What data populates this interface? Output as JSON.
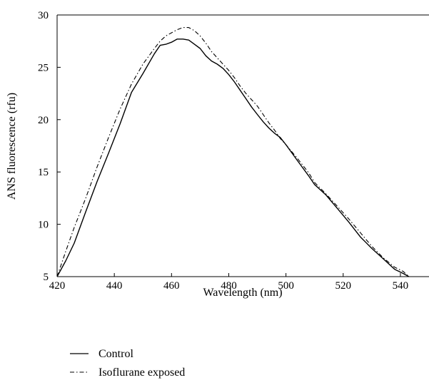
{
  "chart_data": {
    "type": "line",
    "xlabel": "Wavelength (nm)",
    "ylabel": "ANS fluorescence (rfu)",
    "xlim": [
      420,
      550
    ],
    "ylim": [
      5,
      30
    ],
    "x_ticks": [
      "420",
      "440",
      "460",
      "480",
      "500",
      "520",
      "540"
    ],
    "y_ticks": [
      "5",
      "10",
      "15",
      "20",
      "25",
      "30"
    ],
    "legend_position": "below",
    "series": [
      {
        "name": "Control",
        "style": "solid",
        "color": "#000000",
        "x": [
          420,
          423,
          426,
          430,
          434,
          438,
          442,
          446,
          450,
          454,
          456,
          458,
          460,
          462,
          464,
          466,
          468,
          470,
          472,
          474,
          476,
          478,
          480,
          482,
          484,
          486,
          488,
          490,
          492,
          494,
          496,
          498,
          500,
          504,
          508,
          510,
          514,
          518,
          522,
          526,
          530,
          534,
          538,
          541,
          543
        ],
        "y": [
          5.0,
          6.5,
          8.2,
          11.2,
          14.1,
          16.8,
          19.6,
          22.6,
          24.4,
          26.3,
          27.1,
          27.2,
          27.4,
          27.7,
          27.7,
          27.6,
          27.2,
          26.8,
          26.1,
          25.6,
          25.3,
          24.9,
          24.3,
          23.6,
          22.8,
          22.0,
          21.2,
          20.5,
          19.8,
          19.2,
          18.7,
          18.3,
          17.6,
          16.1,
          14.6,
          13.8,
          12.8,
          11.5,
          10.2,
          8.8,
          7.7,
          6.7,
          5.7,
          5.3,
          5.0
        ]
      },
      {
        "name": "Isoflurane exposed",
        "style": "dash-dot",
        "color": "#000000",
        "x": [
          420,
          423,
          426,
          430,
          434,
          438,
          442,
          446,
          450,
          454,
          456,
          458,
          460,
          462,
          464,
          466,
          468,
          470,
          472,
          474,
          476,
          478,
          480,
          482,
          484,
          486,
          488,
          490,
          492,
          494,
          496,
          498,
          500,
          504,
          508,
          510,
          514,
          518,
          522,
          526,
          530,
          534,
          538,
          541,
          543
        ],
        "y": [
          5.0,
          7.4,
          9.7,
          12.5,
          15.5,
          18.3,
          21.0,
          23.4,
          25.3,
          26.8,
          27.5,
          28.0,
          28.3,
          28.6,
          28.8,
          28.8,
          28.5,
          28.0,
          27.3,
          26.5,
          25.9,
          25.3,
          24.7,
          24.0,
          23.2,
          22.5,
          21.9,
          21.3,
          20.5,
          19.7,
          19.0,
          18.2,
          17.6,
          16.3,
          14.9,
          14.0,
          12.9,
          11.7,
          10.5,
          9.2,
          7.9,
          6.8,
          5.9,
          5.5,
          5.0
        ]
      }
    ]
  }
}
